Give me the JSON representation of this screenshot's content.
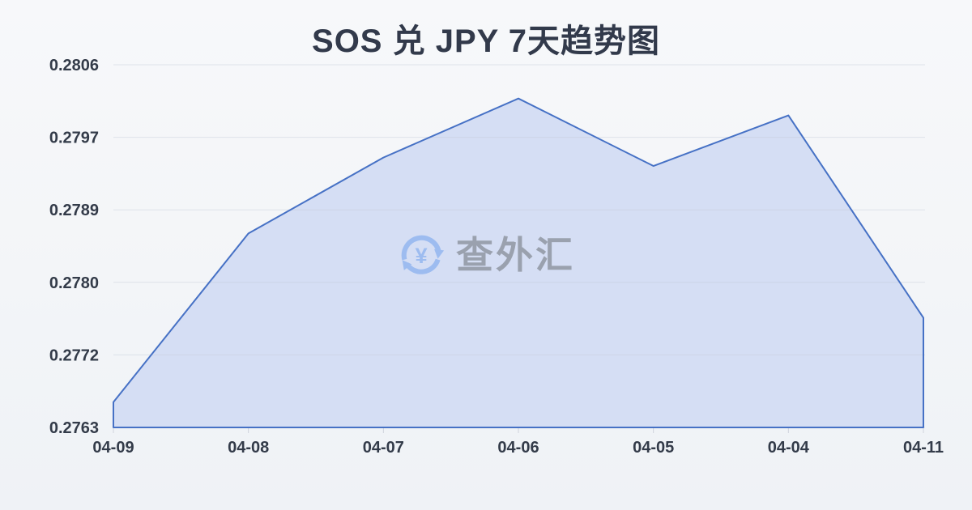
{
  "page": {
    "title": "SOS 兑 JPY 7天趋势图"
  },
  "watermark": {
    "brand_text": "查外汇",
    "currency_symbol": "¥"
  },
  "chart_data": {
    "type": "area",
    "title": "SOS 兑 JPY 7天趋势图",
    "categories": [
      "04-09",
      "04-08",
      "04-07",
      "04-06",
      "04-05",
      "04-04",
      "04-11"
    ],
    "values": [
      0.2766,
      0.2786,
      0.2795,
      0.2802,
      0.2794,
      0.28,
      0.2776
    ],
    "y_tick_labels": [
      "0.2806",
      "0.2797",
      "0.2789",
      "0.2780",
      "0.2772",
      "0.2763"
    ],
    "ylim": [
      0.2763,
      0.2806
    ],
    "xlabel": "",
    "ylabel": "",
    "grid": true,
    "legend_position": "none",
    "colors": {
      "line": "#4671c5",
      "fill": "#d5def4",
      "gridline": "#c3cad8",
      "tick": "#c7ccd6",
      "title": "#323a4b",
      "axis_label": "#333b49",
      "watermark_text": "#9aa1ae",
      "watermark_icon": "#9dbcf0",
      "background_top": "#f7f8fa",
      "background_bottom": "#eff2f6"
    }
  }
}
